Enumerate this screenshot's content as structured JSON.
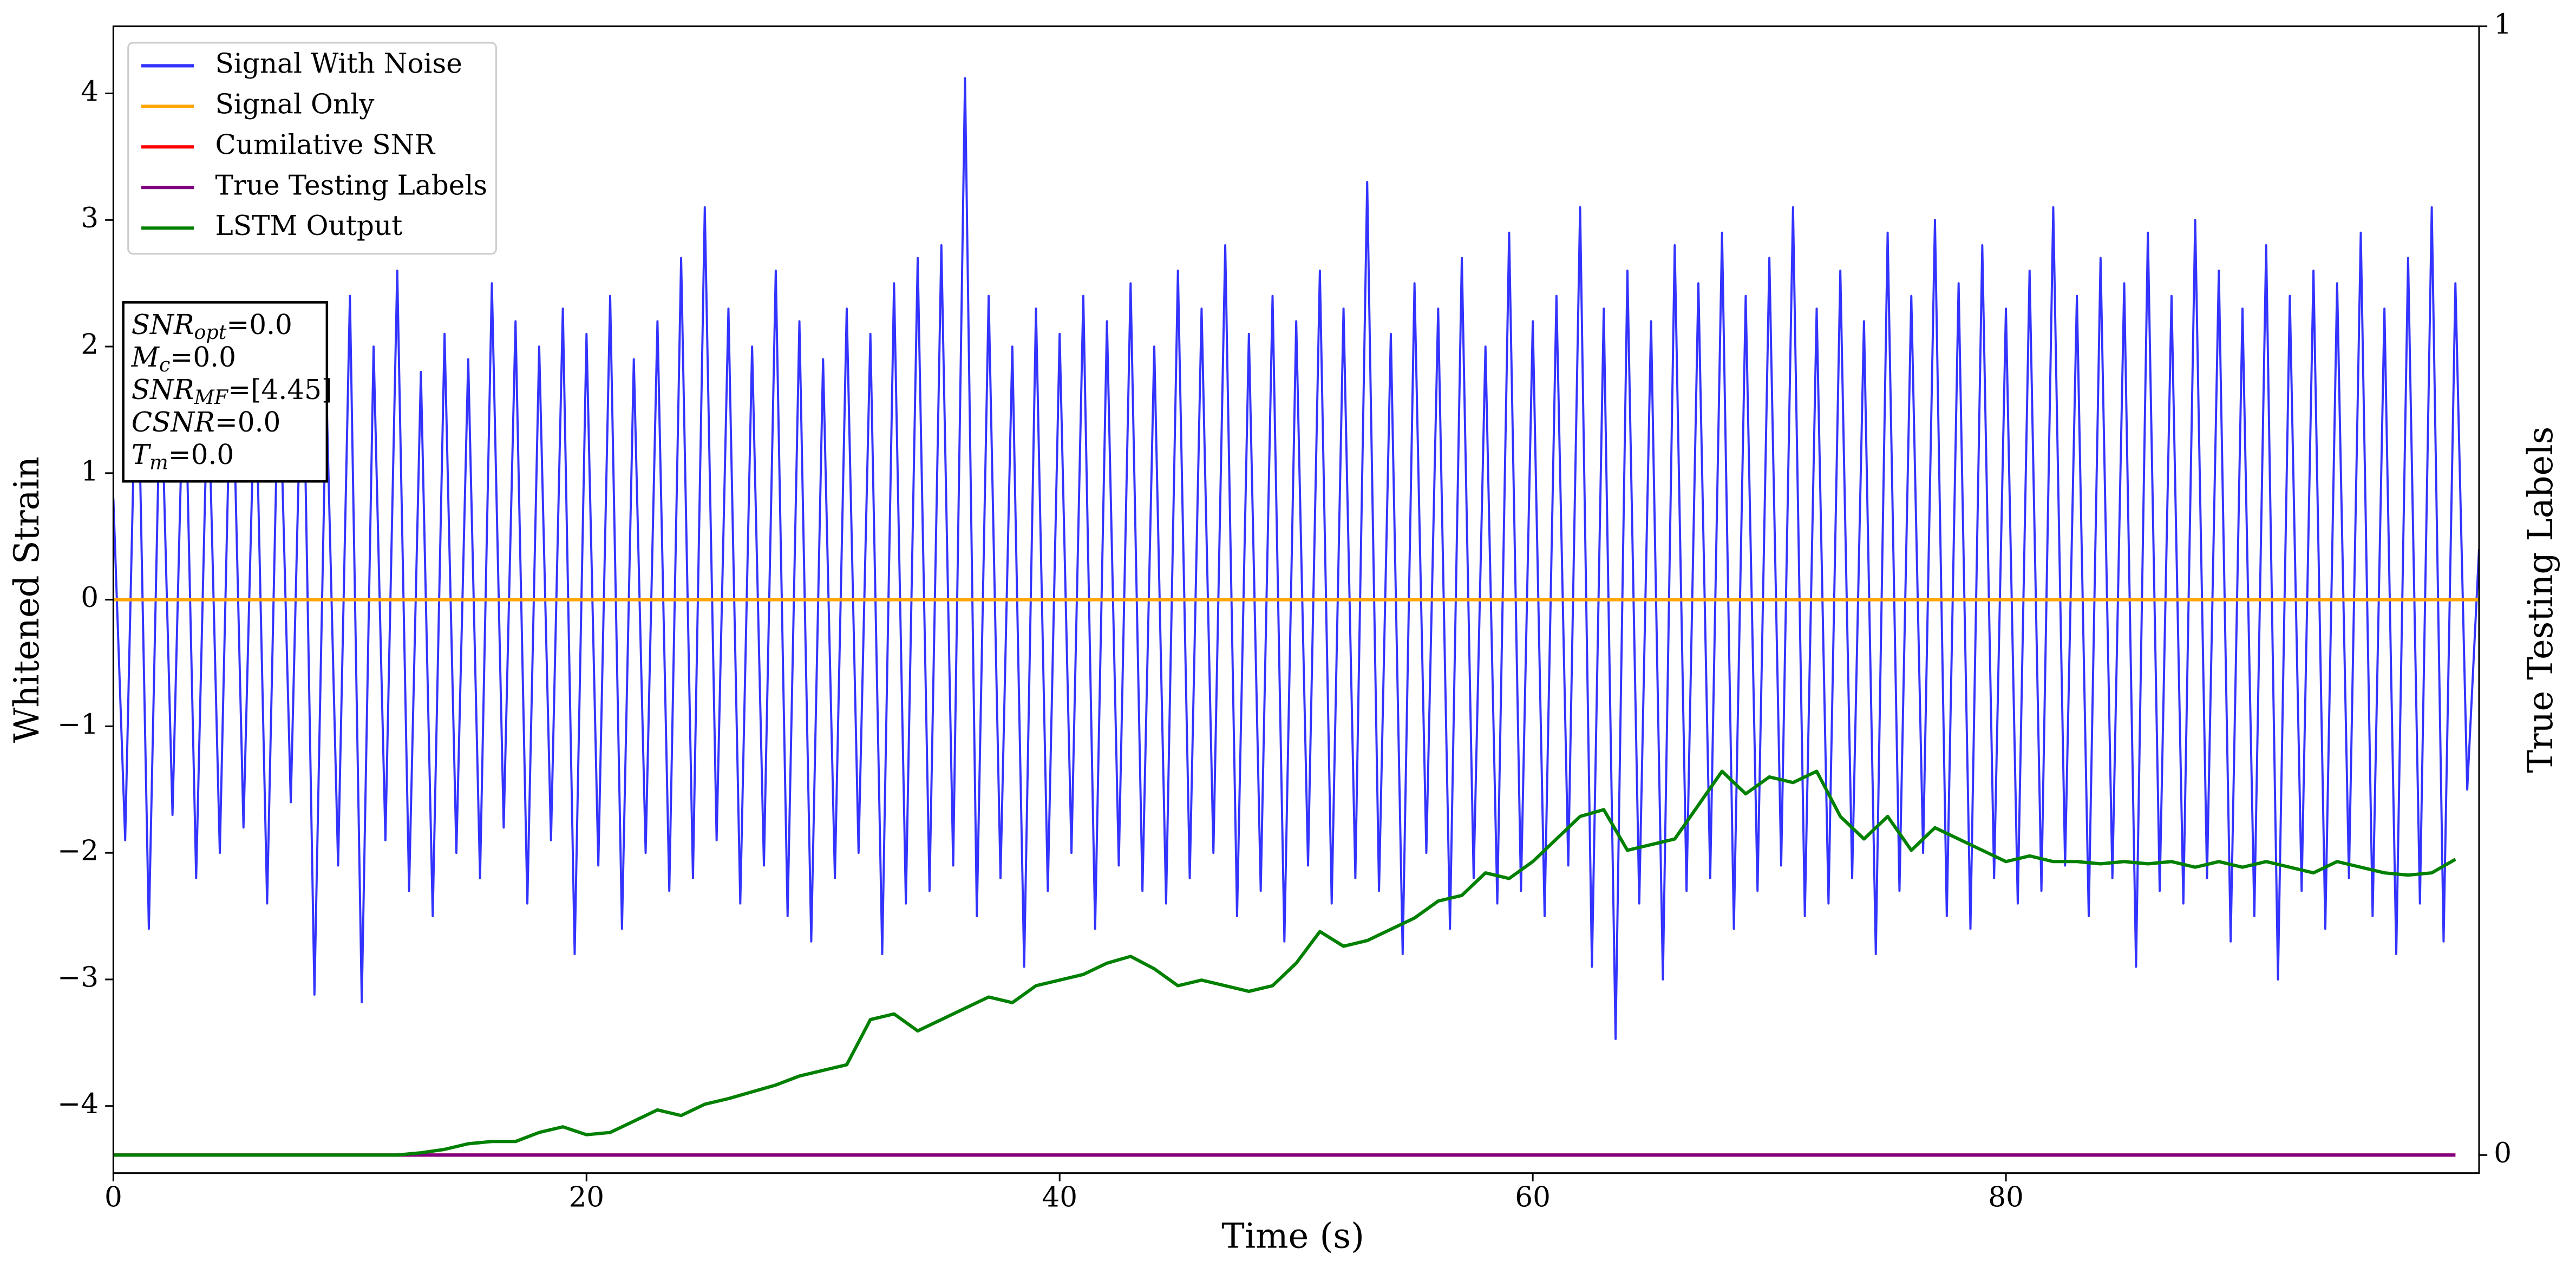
{
  "chart_data": {
    "type": "line",
    "xlabel": "Time (s)",
    "ylabel": "Whitened Strain",
    "y2label": "True Testing Labels",
    "xlim": [
      0,
      100
    ],
    "ylim": [
      -4.53,
      4.53
    ],
    "y2lim": [
      -0.016,
      1
    ],
    "xticks": [
      0,
      20,
      40,
      60,
      80
    ],
    "yticks": [
      {
        "value": -4,
        "label": "−4"
      },
      {
        "value": -3,
        "label": "−3"
      },
      {
        "value": -2,
        "label": "−2"
      },
      {
        "value": -1,
        "label": "−1"
      },
      0,
      1,
      2,
      3,
      4
    ],
    "y2ticks": [
      0,
      1
    ],
    "legend": "upper left",
    "annotations": [
      {
        "symbol": "SNR",
        "sub": "opt",
        "text": "=0.0"
      },
      {
        "symbol": "M",
        "sub": "c",
        "text": "=0.0"
      },
      {
        "symbol": "SNR",
        "sub": "MF",
        "text": "=[4.45]"
      },
      {
        "symbol": "CSNR",
        "sub": "",
        "text": "=0.0"
      },
      {
        "symbol": "T",
        "sub": "m",
        "text": "=0.0"
      }
    ],
    "series": [
      {
        "name": "Signal With Noise",
        "color": "#3333ff",
        "axis": "y",
        "x": [
          0,
          0.5,
          1,
          1.5,
          2,
          2.5,
          3,
          3.5,
          4,
          4.5,
          5,
          5.5,
          6,
          6.5,
          7,
          7.5,
          8,
          8.5,
          9,
          9.5,
          10,
          10.5,
          11,
          11.5,
          12,
          12.5,
          13,
          13.5,
          14,
          14.5,
          15,
          15.5,
          16,
          16.5,
          17,
          17.5,
          18,
          18.5,
          19,
          19.5,
          20,
          20.5,
          21,
          21.5,
          22,
          22.5,
          23,
          23.5,
          24,
          24.5,
          25,
          25.5,
          26,
          26.5,
          27,
          27.5,
          28,
          28.5,
          29,
          29.5,
          30,
          30.5,
          31,
          31.5,
          32,
          32.5,
          33,
          33.5,
          34,
          34.5,
          35,
          35.5,
          36,
          36.5,
          37,
          37.5,
          38,
          38.5,
          39,
          39.5,
          40,
          40.5,
          41,
          41.5,
          42,
          42.5,
          43,
          43.5,
          44,
          44.5,
          45,
          45.5,
          46,
          46.5,
          47,
          47.5,
          48,
          48.5,
          49,
          49.5,
          50,
          50.5,
          51,
          51.5,
          52,
          52.5,
          53,
          53.5,
          54,
          54.5,
          55,
          55.5,
          56,
          56.5,
          57,
          57.5,
          58,
          58.5,
          59,
          59.5,
          60,
          60.5,
          61,
          61.5,
          62,
          62.5,
          63,
          63.5,
          64,
          64.5,
          65,
          65.5,
          66,
          66.5,
          67,
          67.5,
          68,
          68.5,
          69,
          69.5,
          70,
          70.5,
          71,
          71.5,
          72,
          72.5,
          73,
          73.5,
          74,
          74.5,
          75,
          75.5,
          76,
          76.5,
          77,
          77.5,
          78,
          78.5,
          79,
          79.5,
          80,
          80.5,
          81,
          81.5,
          82,
          82.5,
          83,
          83.5,
          84,
          84.5,
          85,
          85.5,
          86,
          86.5,
          87,
          87.5,
          88,
          88.5,
          89,
          89.5,
          90,
          90.5,
          91,
          91.5,
          92,
          92.5,
          93,
          93.5,
          94,
          94.5,
          95,
          95.5,
          96,
          96.5,
          97,
          97.5,
          98,
          98.5,
          99,
          99.5,
          100
        ],
        "values": [
          0.8,
          -1.9,
          2.3,
          -2.6,
          1.9,
          -1.7,
          2.1,
          -2.2,
          1.8,
          -2.0,
          2.2,
          -1.8,
          1.9,
          -2.4,
          2.0,
          -1.6,
          2.3,
          -3.12,
          1.7,
          -2.1,
          2.4,
          -3.18,
          2.0,
          -1.9,
          2.6,
          -2.3,
          1.8,
          -2.5,
          2.1,
          -2.0,
          1.9,
          -2.2,
          2.5,
          -1.8,
          2.2,
          -2.4,
          2.0,
          -1.9,
          2.3,
          -2.8,
          2.1,
          -2.1,
          2.4,
          -2.6,
          1.9,
          -2.0,
          2.2,
          -2.3,
          2.7,
          -2.2,
          3.1,
          -1.9,
          2.3,
          -2.4,
          2.0,
          -2.1,
          2.6,
          -2.5,
          2.2,
          -2.7,
          1.9,
          -2.2,
          2.3,
          -2.0,
          2.1,
          -2.8,
          2.5,
          -2.4,
          2.7,
          -2.3,
          2.8,
          -2.1,
          4.12,
          -2.5,
          2.4,
          -2.2,
          2.0,
          -2.9,
          2.3,
          -2.3,
          2.1,
          -2.0,
          2.4,
          -2.6,
          2.2,
          -2.1,
          2.5,
          -2.3,
          2.0,
          -2.4,
          2.6,
          -2.2,
          2.3,
          -2.0,
          2.8,
          -2.5,
          2.1,
          -2.3,
          2.4,
          -2.7,
          2.2,
          -2.1,
          2.6,
          -2.4,
          2.3,
          -2.2,
          3.3,
          -2.3,
          2.1,
          -2.8,
          2.5,
          -2.0,
          2.3,
          -2.6,
          2.7,
          -2.2,
          2.0,
          -2.4,
          2.9,
          -2.3,
          2.2,
          -2.5,
          2.4,
          -2.1,
          3.1,
          -2.9,
          2.3,
          -3.47,
          2.6,
          -2.4,
          2.2,
          -3.0,
          2.8,
          -2.3,
          2.5,
          -2.2,
          2.9,
          -2.6,
          2.4,
          -2.3,
          2.7,
          -2.1,
          3.1,
          -2.5,
          2.3,
          -2.4,
          2.6,
          -2.2,
          2.2,
          -2.8,
          2.9,
          -2.3,
          2.4,
          -2.0,
          3.0,
          -2.5,
          2.5,
          -2.6,
          2.8,
          -2.2,
          2.3,
          -2.4,
          2.6,
          -2.3,
          3.1,
          -2.1,
          2.4,
          -2.5,
          2.7,
          -2.2,
          2.5,
          -2.9,
          2.9,
          -2.3,
          2.4,
          -2.4,
          3.0,
          -2.2,
          2.6,
          -2.7,
          2.3,
          -2.5,
          2.8,
          -3.0,
          2.4,
          -2.3,
          2.6,
          -2.6,
          2.5,
          -2.2,
          2.9,
          -2.5,
          2.3,
          -2.8,
          2.7,
          -2.4,
          3.1,
          -2.7,
          2.5,
          -1.5,
          0.4
        ]
      },
      {
        "name": "Signal Only",
        "color": "#ffa500",
        "axis": "y",
        "x": [
          0,
          100
        ],
        "values": [
          0,
          0
        ]
      },
      {
        "name": "Cumilative SNR",
        "color": "#ff0000",
        "axis": "y2",
        "x": [
          0,
          99
        ],
        "values": [
          0,
          0
        ]
      },
      {
        "name": "True Testing Labels",
        "color": "#800080",
        "axis": "y2",
        "x": [
          0,
          99
        ],
        "values": [
          0,
          0
        ]
      },
      {
        "name": "LSTM Output",
        "color": "#008000",
        "axis": "y2",
        "x": [
          0,
          1,
          2,
          3,
          4,
          5,
          6,
          7,
          8,
          9,
          10,
          11,
          12,
          13,
          14,
          15,
          16,
          17,
          18,
          19,
          20,
          21,
          22,
          23,
          24,
          25,
          26,
          27,
          28,
          29,
          30,
          31,
          32,
          33,
          34,
          35,
          36,
          37,
          38,
          39,
          40,
          41,
          42,
          43,
          44,
          45,
          46,
          47,
          48,
          49,
          50,
          51,
          52,
          53,
          54,
          55,
          56,
          57,
          58,
          59,
          60,
          61,
          62,
          63,
          64,
          65,
          66,
          67,
          68,
          69,
          70,
          71,
          72,
          73,
          74,
          75,
          76,
          77,
          78,
          79,
          80,
          81,
          82,
          83,
          84,
          85,
          86,
          87,
          88,
          89,
          90,
          91,
          92,
          93,
          94,
          95,
          96,
          97,
          98,
          99
        ],
        "values": [
          0,
          0,
          0,
          0,
          0,
          0,
          0,
          0,
          0,
          0,
          0,
          0,
          0,
          0.002,
          0.005,
          0.01,
          0.012,
          0.012,
          0.02,
          0.025,
          0.018,
          0.02,
          0.03,
          0.04,
          0.035,
          0.045,
          0.05,
          0.056,
          0.062,
          0.07,
          0.075,
          0.08,
          0.12,
          0.125,
          0.11,
          0.12,
          0.13,
          0.14,
          0.135,
          0.15,
          0.155,
          0.16,
          0.17,
          0.176,
          0.165,
          0.15,
          0.155,
          0.15,
          0.145,
          0.15,
          0.17,
          0.198,
          0.185,
          0.19,
          0.2,
          0.21,
          0.225,
          0.23,
          0.25,
          0.245,
          0.26,
          0.28,
          0.3,
          0.306,
          0.27,
          0.275,
          0.28,
          0.31,
          0.34,
          0.32,
          0.335,
          0.33,
          0.34,
          0.3,
          0.28,
          0.3,
          0.27,
          0.29,
          0.28,
          0.27,
          0.26,
          0.265,
          0.26,
          0.26,
          0.258,
          0.26,
          0.258,
          0.26,
          0.255,
          0.26,
          0.255,
          0.26,
          0.255,
          0.25,
          0.26,
          0.255,
          0.25,
          0.248,
          0.25,
          0.262
        ]
      }
    ]
  }
}
